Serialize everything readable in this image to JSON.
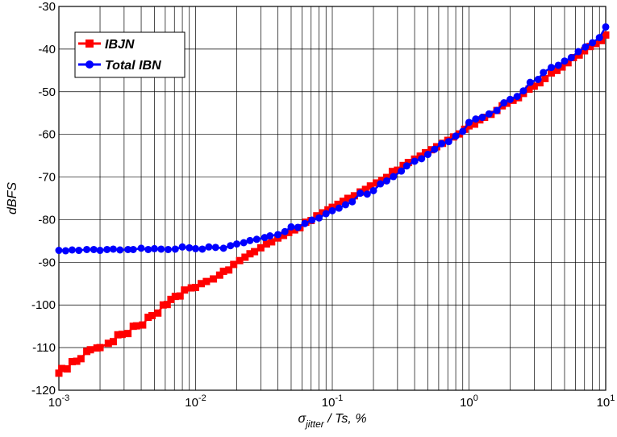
{
  "chart_data": {
    "type": "line",
    "xscale": "log",
    "xlim": [
      0.001,
      10
    ],
    "ylim": [
      -120,
      -30
    ],
    "grid": true,
    "legend_position": "top-left",
    "xlabel": {
      "sym": "σ",
      "sub": "jitter",
      "rest": " / Ts, %"
    },
    "ylabel": "dBFS",
    "x_ticks": [
      {
        "base": "10",
        "exp": "-3"
      },
      {
        "base": "10",
        "exp": "-2"
      },
      {
        "base": "10",
        "exp": "-1"
      },
      {
        "base": "10",
        "exp": "0"
      },
      {
        "base": "10",
        "exp": "1"
      }
    ],
    "y_ticks": [
      "-30",
      "-40",
      "-50",
      "-60",
      "-70",
      "-80",
      "-90",
      "-100",
      "-110",
      "-120"
    ],
    "series": [
      {
        "name": "IBJN",
        "color": "#ff0000",
        "marker": "square",
        "points": [
          [
            0.001,
            -116
          ],
          [
            0.00105,
            -114.9
          ],
          [
            0.00115,
            -115
          ],
          [
            0.00125,
            -113.3
          ],
          [
            0.00135,
            -113.2
          ],
          [
            0.00145,
            -112.6
          ],
          [
            0.0016,
            -110.9
          ],
          [
            0.0017,
            -110.5
          ],
          [
            0.0019,
            -110.1
          ],
          [
            0.002,
            -110
          ],
          [
            0.0023,
            -109
          ],
          [
            0.0025,
            -108.6
          ],
          [
            0.0027,
            -107
          ],
          [
            0.0029,
            -106.9
          ],
          [
            0.0032,
            -106.7
          ],
          [
            0.0035,
            -105
          ],
          [
            0.0037,
            -104.9
          ],
          [
            0.0041,
            -104.7
          ],
          [
            0.0045,
            -102.9
          ],
          [
            0.0048,
            -102.5
          ],
          [
            0.0053,
            -101.9
          ],
          [
            0.0058,
            -100
          ],
          [
            0.0062,
            -99.9
          ],
          [
            0.0066,
            -98.7
          ],
          [
            0.0071,
            -98
          ],
          [
            0.0077,
            -97.9
          ],
          [
            0.0083,
            -96.5
          ],
          [
            0.0093,
            -96
          ],
          [
            0.01,
            -95.9
          ],
          [
            0.011,
            -95
          ],
          [
            0.012,
            -94.5
          ],
          [
            0.0135,
            -93.9
          ],
          [
            0.015,
            -93
          ],
          [
            0.016,
            -92.1
          ],
          [
            0.0175,
            -91.8
          ],
          [
            0.019,
            -90.5
          ],
          [
            0.021,
            -89.6
          ],
          [
            0.023,
            -88.8
          ],
          [
            0.025,
            -88
          ],
          [
            0.027,
            -87.5
          ],
          [
            0.03,
            -86.6
          ],
          [
            0.033,
            -85.7
          ],
          [
            0.036,
            -85.2
          ],
          [
            0.04,
            -84.3
          ],
          [
            0.044,
            -83.7
          ],
          [
            0.048,
            -83
          ],
          [
            0.053,
            -82.4
          ],
          [
            0.058,
            -81.9
          ],
          [
            0.064,
            -80.6
          ],
          [
            0.07,
            -80.2
          ],
          [
            0.077,
            -79.1
          ],
          [
            0.085,
            -78.4
          ],
          [
            0.093,
            -77.7
          ],
          [
            0.1,
            -77.1
          ],
          [
            0.11,
            -76.4
          ],
          [
            0.12,
            -75.7
          ],
          [
            0.13,
            -75
          ],
          [
            0.145,
            -74.4
          ],
          [
            0.16,
            -73.5
          ],
          [
            0.175,
            -72.9
          ],
          [
            0.19,
            -72.1
          ],
          [
            0.21,
            -71.4
          ],
          [
            0.23,
            -70.8
          ],
          [
            0.25,
            -70.1
          ],
          [
            0.275,
            -68.7
          ],
          [
            0.3,
            -68.4
          ],
          [
            0.33,
            -67.3
          ],
          [
            0.36,
            -66.6
          ],
          [
            0.4,
            -65.8
          ],
          [
            0.44,
            -65.1
          ],
          [
            0.48,
            -64.3
          ],
          [
            0.53,
            -63.6
          ],
          [
            0.58,
            -62.9
          ],
          [
            0.64,
            -62.1
          ],
          [
            0.7,
            -61.4
          ],
          [
            0.77,
            -60.6
          ],
          [
            0.85,
            -59.9
          ],
          [
            0.93,
            -58.8
          ],
          [
            1.0,
            -58
          ],
          [
            1.1,
            -57.6
          ],
          [
            1.2,
            -56.6
          ],
          [
            1.3,
            -56
          ],
          [
            1.45,
            -55.3
          ],
          [
            1.6,
            -54.4
          ],
          [
            1.75,
            -53.3
          ],
          [
            1.9,
            -52.7
          ],
          [
            2.1,
            -52
          ],
          [
            2.3,
            -51.4
          ],
          [
            2.5,
            -50.4
          ],
          [
            2.75,
            -49.4
          ],
          [
            3.0,
            -48.7
          ],
          [
            3.3,
            -47.9
          ],
          [
            3.6,
            -46.9
          ],
          [
            4.0,
            -45.6
          ],
          [
            4.4,
            -45
          ],
          [
            4.8,
            -44.2
          ],
          [
            5.3,
            -43.2
          ],
          [
            5.8,
            -42
          ],
          [
            6.4,
            -41.4
          ],
          [
            7.0,
            -40.4
          ],
          [
            7.7,
            -39.4
          ],
          [
            8.5,
            -38.7
          ],
          [
            9.3,
            -38
          ],
          [
            10,
            -36.7
          ]
        ]
      },
      {
        "name": "Total IBN",
        "color": "#0000ff",
        "marker": "circle",
        "points": [
          [
            0.001,
            -87.2
          ],
          [
            0.00112,
            -87.3
          ],
          [
            0.00125,
            -87.1
          ],
          [
            0.0014,
            -87.2
          ],
          [
            0.0016,
            -87
          ],
          [
            0.0018,
            -87
          ],
          [
            0.002,
            -87.2
          ],
          [
            0.00225,
            -87
          ],
          [
            0.0025,
            -86.9
          ],
          [
            0.0028,
            -87.1
          ],
          [
            0.0032,
            -87
          ],
          [
            0.0035,
            -87
          ],
          [
            0.004,
            -86.7
          ],
          [
            0.0045,
            -87
          ],
          [
            0.005,
            -86.8
          ],
          [
            0.0056,
            -86.9
          ],
          [
            0.0063,
            -87
          ],
          [
            0.0071,
            -86.9
          ],
          [
            0.008,
            -86.4
          ],
          [
            0.009,
            -86.6
          ],
          [
            0.01,
            -86.8
          ],
          [
            0.0112,
            -86.9
          ],
          [
            0.0125,
            -86.4
          ],
          [
            0.014,
            -86.5
          ],
          [
            0.016,
            -86.7
          ],
          [
            0.018,
            -86.1
          ],
          [
            0.02,
            -85.7
          ],
          [
            0.0225,
            -85.4
          ],
          [
            0.025,
            -84.9
          ],
          [
            0.028,
            -84.6
          ],
          [
            0.032,
            -84.2
          ],
          [
            0.035,
            -83.8
          ],
          [
            0.04,
            -83.5
          ],
          [
            0.045,
            -82.8
          ],
          [
            0.05,
            -81.7
          ],
          [
            0.056,
            -81.8
          ],
          [
            0.063,
            -80.9
          ],
          [
            0.071,
            -80.1
          ],
          [
            0.08,
            -79.6
          ],
          [
            0.09,
            -78.6
          ],
          [
            0.1,
            -77.9
          ],
          [
            0.112,
            -77.3
          ],
          [
            0.125,
            -76.5
          ],
          [
            0.14,
            -75.8
          ],
          [
            0.16,
            -73.8
          ],
          [
            0.18,
            -74
          ],
          [
            0.2,
            -73.2
          ],
          [
            0.225,
            -71.6
          ],
          [
            0.25,
            -70.9
          ],
          [
            0.28,
            -69.9
          ],
          [
            0.32,
            -68.6
          ],
          [
            0.35,
            -67.4
          ],
          [
            0.4,
            -66.3
          ],
          [
            0.45,
            -65.7
          ],
          [
            0.5,
            -64.7
          ],
          [
            0.56,
            -63.5
          ],
          [
            0.63,
            -62.2
          ],
          [
            0.71,
            -61.7
          ],
          [
            0.8,
            -60.4
          ],
          [
            0.9,
            -59.3
          ],
          [
            1.0,
            -57.2
          ],
          [
            1.12,
            -56.4
          ],
          [
            1.25,
            -56
          ],
          [
            1.4,
            -55.2
          ],
          [
            1.6,
            -54.4
          ],
          [
            1.8,
            -52.6
          ],
          [
            2.0,
            -51.8
          ],
          [
            2.25,
            -51.1
          ],
          [
            2.5,
            -49.8
          ],
          [
            2.8,
            -47.8
          ],
          [
            3.2,
            -47.1
          ],
          [
            3.5,
            -45.5
          ],
          [
            4.0,
            -44.3
          ],
          [
            4.5,
            -43.8
          ],
          [
            5.0,
            -42.8
          ],
          [
            5.6,
            -42
          ],
          [
            6.3,
            -40.6
          ],
          [
            7.1,
            -39.5
          ],
          [
            8.0,
            -38.5
          ],
          [
            9.0,
            -37.3
          ],
          [
            10,
            -34.8
          ]
        ]
      }
    ]
  }
}
